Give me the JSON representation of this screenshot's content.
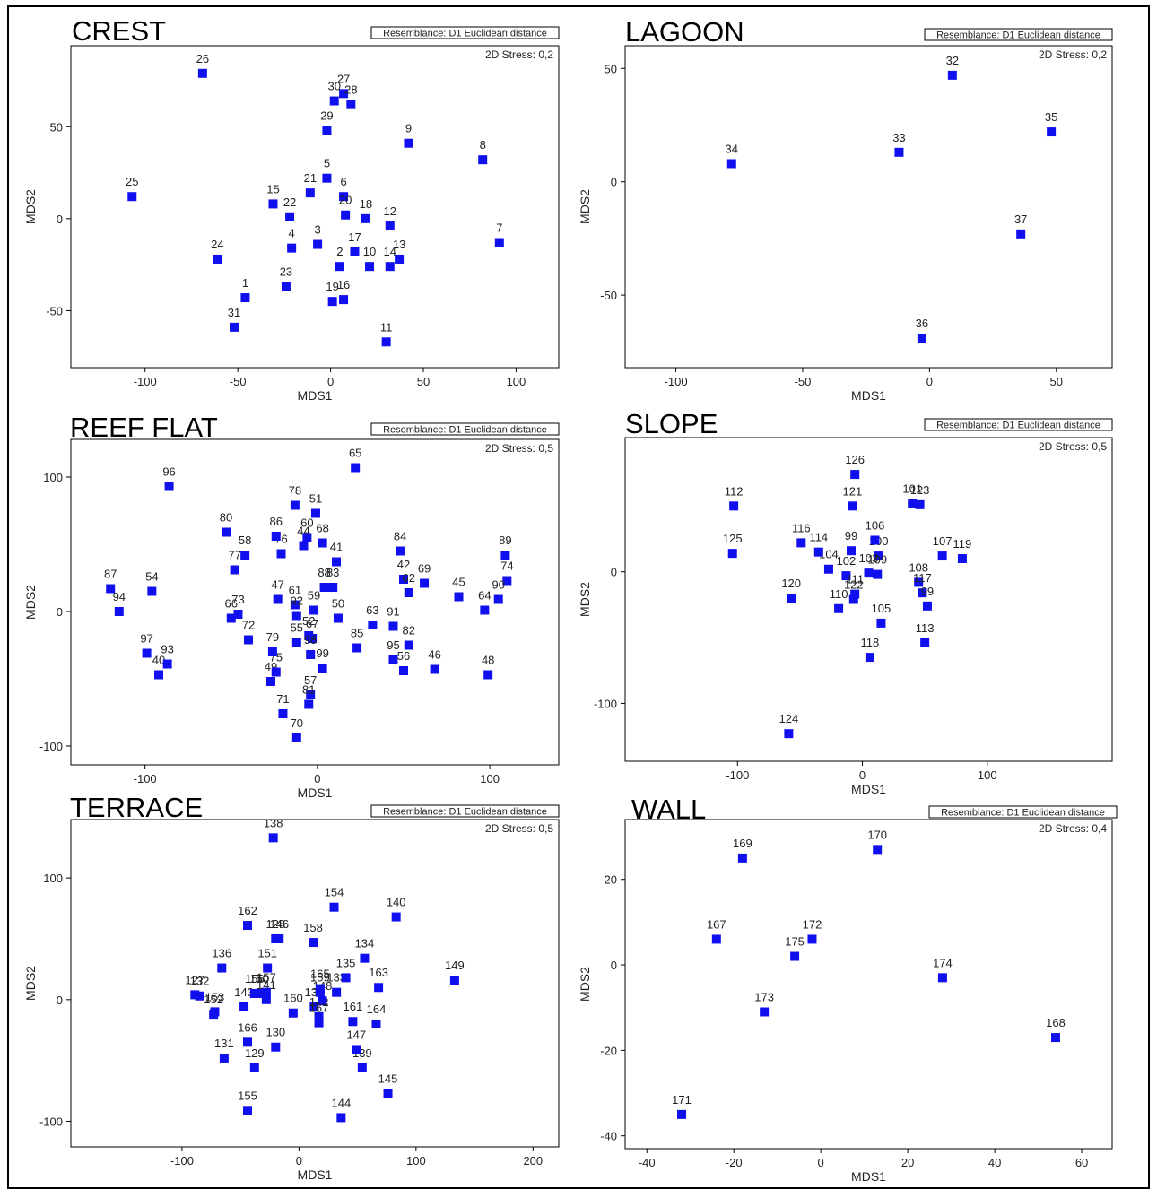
{
  "resemblance_label": "Resemblance: D1 Euclidean distance",
  "marker_color": "#1010ee",
  "chart_data": [
    {
      "type": "scatter",
      "title": "CREST",
      "stress": "2D Stress: 0,2",
      "xlabel": "MDS1",
      "ylabel": "MDS2",
      "xlim": [
        -140,
        123
      ],
      "ylim": [
        -81,
        94
      ],
      "xticks": [
        -100,
        -50,
        0,
        50,
        100
      ],
      "yticks": [
        -50,
        0,
        50
      ],
      "points": [
        {
          "label": "1",
          "x": -46,
          "y": -43
        },
        {
          "label": "2",
          "x": 5,
          "y": -26
        },
        {
          "label": "3",
          "x": -7,
          "y": -14
        },
        {
          "label": "4",
          "x": -21,
          "y": -16
        },
        {
          "label": "5",
          "x": -2,
          "y": 22
        },
        {
          "label": "6",
          "x": 7,
          "y": 12
        },
        {
          "label": "7",
          "x": 91,
          "y": -13
        },
        {
          "label": "8",
          "x": 82,
          "y": 32
        },
        {
          "label": "9",
          "x": 42,
          "y": 41
        },
        {
          "label": "10",
          "x": 21,
          "y": -26
        },
        {
          "label": "12",
          "x": 32,
          "y": -4
        },
        {
          "label": "13",
          "x": 37,
          "y": -22
        },
        {
          "label": "14",
          "x": 32,
          "y": -26
        },
        {
          "label": "11",
          "x": 30,
          "y": -67
        },
        {
          "label": "15",
          "x": -31,
          "y": 8
        },
        {
          "label": "16",
          "x": 7,
          "y": -44
        },
        {
          "label": "17",
          "x": 13,
          "y": -18
        },
        {
          "label": "18",
          "x": 19,
          "y": 0
        },
        {
          "label": "19",
          "x": 1,
          "y": -45
        },
        {
          "label": "20",
          "x": 8,
          "y": 2
        },
        {
          "label": "21",
          "x": -11,
          "y": 14
        },
        {
          "label": "22",
          "x": -22,
          "y": 1
        },
        {
          "label": "23",
          "x": -24,
          "y": -37
        },
        {
          "label": "24",
          "x": -61,
          "y": -22
        },
        {
          "label": "25",
          "x": -107,
          "y": 12
        },
        {
          "label": "26",
          "x": -69,
          "y": 79
        },
        {
          "label": "27",
          "x": 7,
          "y": 68
        },
        {
          "label": "28",
          "x": 11,
          "y": 62
        },
        {
          "label": "29",
          "x": -2,
          "y": 48
        },
        {
          "label": "30",
          "x": 2,
          "y": 64
        },
        {
          "label": "31",
          "x": -52,
          "y": -59
        }
      ]
    },
    {
      "type": "scatter",
      "title": "LAGOON",
      "stress": "2D Stress: 0,2",
      "xlabel": "MDS1",
      "ylabel": "MDS2",
      "xlim": [
        -120,
        72
      ],
      "ylim": [
        -82,
        60
      ],
      "xticks": [
        -100,
        -50,
        0,
        50
      ],
      "yticks": [
        -50,
        0,
        50
      ],
      "points": [
        {
          "label": "32",
          "x": 9,
          "y": 47
        },
        {
          "label": "33",
          "x": -12,
          "y": 13
        },
        {
          "label": "34",
          "x": -78,
          "y": 8
        },
        {
          "label": "35",
          "x": 48,
          "y": 22
        },
        {
          "label": "36",
          "x": -3,
          "y": -69
        },
        {
          "label": "37",
          "x": 36,
          "y": -23
        }
      ]
    },
    {
      "type": "scatter",
      "title": "REEF FLAT",
      "stress": "2D Stress: 0,5",
      "xlabel": "MDS1",
      "ylabel": "MDS2",
      "xlim": [
        -143,
        140
      ],
      "ylim": [
        -114,
        128
      ],
      "xticks": [
        -100,
        0,
        100
      ],
      "yticks": [
        -100,
        0,
        100
      ],
      "points": [
        {
          "label": "40",
          "x": -92,
          "y": -47
        },
        {
          "label": "41",
          "x": 11,
          "y": 37
        },
        {
          "label": "42",
          "x": 50,
          "y": 24
        },
        {
          "label": "44",
          "x": -8,
          "y": 49
        },
        {
          "label": "45",
          "x": 82,
          "y": 11
        },
        {
          "label": "46",
          "x": 68,
          "y": -43
        },
        {
          "label": "47",
          "x": -23,
          "y": 9
        },
        {
          "label": "48",
          "x": 99,
          "y": -47
        },
        {
          "label": "49",
          "x": -27,
          "y": -52
        },
        {
          "label": "50",
          "x": 12,
          "y": -5
        },
        {
          "label": "51",
          "x": -1,
          "y": 73
        },
        {
          "label": "52",
          "x": -5,
          "y": -18
        },
        {
          "label": "54",
          "x": -96,
          "y": 15
        },
        {
          "label": "55",
          "x": -12,
          "y": -23
        },
        {
          "label": "56",
          "x": 50,
          "y": -44
        },
        {
          "label": "57",
          "x": -4,
          "y": -62
        },
        {
          "label": "58",
          "x": -42,
          "y": 42
        },
        {
          "label": "59",
          "x": -2,
          "y": 1
        },
        {
          "label": "60",
          "x": -6,
          "y": 55
        },
        {
          "label": "61",
          "x": -13,
          "y": 5
        },
        {
          "label": "62",
          "x": 53,
          "y": 14
        },
        {
          "label": "63",
          "x": 32,
          "y": -10
        },
        {
          "label": "64",
          "x": 97,
          "y": 1
        },
        {
          "label": "65",
          "x": 22,
          "y": 107
        },
        {
          "label": "66",
          "x": -50,
          "y": -5
        },
        {
          "label": "67",
          "x": -3,
          "y": -20
        },
        {
          "label": "68",
          "x": 3,
          "y": 51
        },
        {
          "label": "69",
          "x": 62,
          "y": 21
        },
        {
          "label": "70",
          "x": -12,
          "y": -94
        },
        {
          "label": "71",
          "x": -20,
          "y": -76
        },
        {
          "label": "72",
          "x": -40,
          "y": -21
        },
        {
          "label": "73",
          "x": -46,
          "y": -2
        },
        {
          "label": "74",
          "x": 110,
          "y": 23
        },
        {
          "label": "75",
          "x": -24,
          "y": -45
        },
        {
          "label": "76",
          "x": -21,
          "y": 43
        },
        {
          "label": "77",
          "x": -48,
          "y": 31
        },
        {
          "label": "78",
          "x": -13,
          "y": 79
        },
        {
          "label": "79",
          "x": -26,
          "y": -30
        },
        {
          "label": "80",
          "x": -53,
          "y": 59
        },
        {
          "label": "81",
          "x": -5,
          "y": -69
        },
        {
          "label": "82",
          "x": 53,
          "y": -25
        },
        {
          "label": "83",
          "x": 9,
          "y": 18
        },
        {
          "label": "84",
          "x": 48,
          "y": 45
        },
        {
          "label": "85",
          "x": 23,
          "y": -27
        },
        {
          "label": "86",
          "x": -24,
          "y": 56
        },
        {
          "label": "87",
          "x": -120,
          "y": 17
        },
        {
          "label": "88",
          "x": 4,
          "y": 18
        },
        {
          "label": "89",
          "x": 109,
          "y": 42
        },
        {
          "label": "90",
          "x": 105,
          "y": 9
        },
        {
          "label": "91",
          "x": 44,
          "y": -11
        },
        {
          "label": "92",
          "x": -12,
          "y": -3
        },
        {
          "label": "93",
          "x": -87,
          "y": -39
        },
        {
          "label": "94",
          "x": -115,
          "y": 0
        },
        {
          "label": "95",
          "x": 44,
          "y": -36
        },
        {
          "label": "96",
          "x": -86,
          "y": 93
        },
        {
          "label": "97",
          "x": -99,
          "y": -31
        },
        {
          "label": "98",
          "x": -4,
          "y": -32
        },
        {
          "label": "99",
          "x": 3,
          "y": -42
        }
      ]
    },
    {
      "type": "scatter",
      "title": "SLOPE",
      "stress": "2D Stress: 0,5",
      "xlabel": "MDS1",
      "ylabel": "MDS2",
      "xlim": [
        -190,
        200
      ],
      "ylim": [
        -144,
        102
      ],
      "xticks": [
        -100,
        0,
        100
      ],
      "yticks": [
        -100,
        0
      ],
      "points": [
        {
          "label": "100",
          "x": 13,
          "y": 12
        },
        {
          "label": "101",
          "x": 40,
          "y": 52
        },
        {
          "label": "102",
          "x": -13,
          "y": -3
        },
        {
          "label": "103",
          "x": 5,
          "y": -1
        },
        {
          "label": "104",
          "x": -27,
          "y": 2
        },
        {
          "label": "105",
          "x": 15,
          "y": -39
        },
        {
          "label": "106",
          "x": 10,
          "y": 24
        },
        {
          "label": "107",
          "x": 64,
          "y": 12
        },
        {
          "label": "108",
          "x": 45,
          "y": -8
        },
        {
          "label": "109",
          "x": 12,
          "y": -2
        },
        {
          "label": "110",
          "x": -19,
          "y": -28
        },
        {
          "label": "111",
          "x": -6,
          "y": -17
        },
        {
          "label": "112",
          "x": -103,
          "y": 50
        },
        {
          "label": "113",
          "x": 50,
          "y": -54
        },
        {
          "label": "114",
          "x": -35,
          "y": 15
        },
        {
          "label": "116",
          "x": -49,
          "y": 22
        },
        {
          "label": "117",
          "x": 48,
          "y": -16
        },
        {
          "label": "118",
          "x": 6,
          "y": -65
        },
        {
          "label": "119",
          "x": 80,
          "y": 10
        },
        {
          "label": "120",
          "x": -57,
          "y": -20
        },
        {
          "label": "121",
          "x": -8,
          "y": 50
        },
        {
          "label": "122",
          "x": -7,
          "y": -21
        },
        {
          "label": "123",
          "x": 46,
          "y": 51
        },
        {
          "label": "124",
          "x": -59,
          "y": -123
        },
        {
          "label": "125",
          "x": -104,
          "y": 14
        },
        {
          "label": "126",
          "x": -6,
          "y": 74
        },
        {
          "label": "99",
          "x": -9,
          "y": 16
        },
        {
          "label": "99",
          "x": 52,
          "y": -26
        }
      ]
    },
    {
      "type": "scatter",
      "title": "TERRACE",
      "stress": "2D Stress: 0,5",
      "xlabel": "MDS1",
      "ylabel": "MDS2",
      "xlim": [
        -195,
        222
      ],
      "ylim": [
        -121,
        148
      ],
      "xticks": [
        -100,
        0,
        100,
        200
      ],
      "yticks": [
        -100,
        0,
        100
      ],
      "points": [
        {
          "label": "127",
          "x": -89,
          "y": 4
        },
        {
          "label": "128",
          "x": -20,
          "y": 50
        },
        {
          "label": "129",
          "x": -38,
          "y": -56
        },
        {
          "label": "130",
          "x": -20,
          "y": -39
        },
        {
          "label": "131",
          "x": -64,
          "y": -48
        },
        {
          "label": "132",
          "x": -85,
          "y": 3
        },
        {
          "label": "133",
          "x": 32,
          "y": 6
        },
        {
          "label": "134",
          "x": 56,
          "y": 34
        },
        {
          "label": "135",
          "x": 40,
          "y": 18
        },
        {
          "label": "136",
          "x": -66,
          "y": 26
        },
        {
          "label": "137",
          "x": 13,
          "y": -6
        },
        {
          "label": "138",
          "x": -22,
          "y": 133
        },
        {
          "label": "139",
          "x": 54,
          "y": -56
        },
        {
          "label": "140",
          "x": 83,
          "y": 68
        },
        {
          "label": "141",
          "x": -28,
          "y": 0
        },
        {
          "label": "142",
          "x": 17,
          "y": -14
        },
        {
          "label": "143",
          "x": -47,
          "y": -6
        },
        {
          "label": "144",
          "x": 36,
          "y": -97
        },
        {
          "label": "145",
          "x": 76,
          "y": -77
        },
        {
          "label": "146",
          "x": -17,
          "y": 50
        },
        {
          "label": "147",
          "x": 49,
          "y": -41
        },
        {
          "label": "148",
          "x": 20,
          "y": -1
        },
        {
          "label": "149",
          "x": 133,
          "y": 16
        },
        {
          "label": "150",
          "x": -34,
          "y": 5
        },
        {
          "label": "151",
          "x": -27,
          "y": 26
        },
        {
          "label": "152",
          "x": -73,
          "y": -12
        },
        {
          "label": "153",
          "x": -72,
          "y": -10
        },
        {
          "label": "154",
          "x": 30,
          "y": 76
        },
        {
          "label": "155",
          "x": -44,
          "y": -91
        },
        {
          "label": "156",
          "x": -38,
          "y": 5
        },
        {
          "label": "157",
          "x": -28,
          "y": 6
        },
        {
          "label": "158",
          "x": 12,
          "y": 47
        },
        {
          "label": "159",
          "x": 18,
          "y": 6
        },
        {
          "label": "160",
          "x": -5,
          "y": -11
        },
        {
          "label": "161",
          "x": 46,
          "y": -18
        },
        {
          "label": "162",
          "x": -44,
          "y": 61
        },
        {
          "label": "163",
          "x": 68,
          "y": 10
        },
        {
          "label": "164",
          "x": 66,
          "y": -20
        },
        {
          "label": "165",
          "x": 18,
          "y": 9
        },
        {
          "label": "166",
          "x": -44,
          "y": -35
        },
        {
          "label": "167",
          "x": 17,
          "y": -19
        }
      ]
    },
    {
      "type": "scatter",
      "title": "WALL",
      "stress": "2D Stress: 0,4",
      "xlabel": "MDS1",
      "ylabel": "MDS2",
      "xlim": [
        -45,
        67
      ],
      "ylim": [
        -43,
        34
      ],
      "xticks": [
        -40,
        -20,
        0,
        20,
        40,
        60
      ],
      "yticks": [
        -40,
        -20,
        0,
        20
      ],
      "points": [
        {
          "label": "167",
          "x": -24,
          "y": 6
        },
        {
          "label": "168",
          "x": 54,
          "y": -17
        },
        {
          "label": "169",
          "x": -18,
          "y": 25
        },
        {
          "label": "170",
          "x": 13,
          "y": 27
        },
        {
          "label": "171",
          "x": -32,
          "y": -35
        },
        {
          "label": "172",
          "x": -2,
          "y": 6
        },
        {
          "label": "173",
          "x": -13,
          "y": -11
        },
        {
          "label": "174",
          "x": 28,
          "y": -3
        },
        {
          "label": "175",
          "x": -6,
          "y": 2
        }
      ]
    }
  ]
}
